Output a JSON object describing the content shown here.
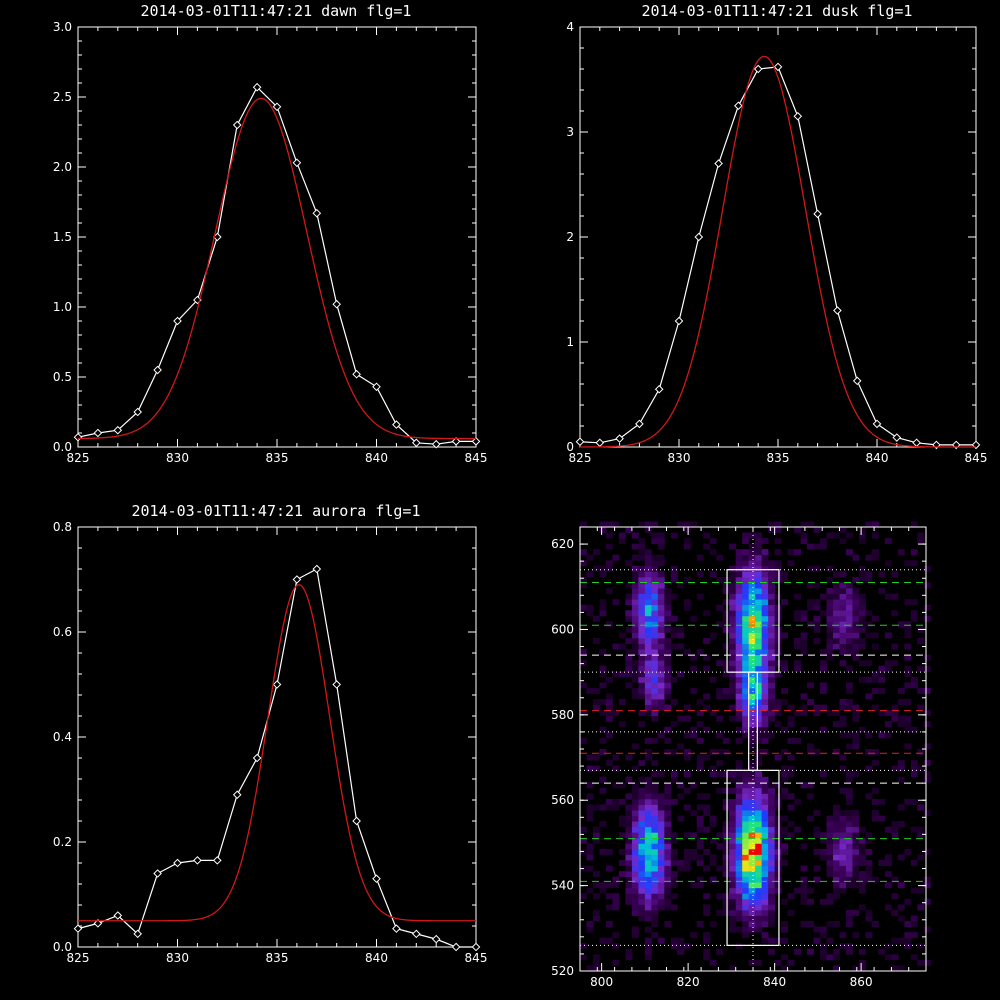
{
  "chart_data": [
    {
      "type": "line",
      "title": "2014-03-01T11:47:21 dawn flg=1",
      "xlim": [
        825,
        845
      ],
      "ylim": [
        0,
        3.0
      ],
      "x_ticks": [
        825,
        830,
        835,
        840,
        845
      ],
      "y_ticks": [
        "0.0",
        "0.5",
        "1.0",
        "1.5",
        "2.0",
        "2.5",
        "3.0"
      ],
      "series": [
        {
          "style": "data",
          "color": "#ffffff",
          "marker": "diamond",
          "x": [
            825,
            826,
            827,
            828,
            829,
            830,
            831,
            832,
            833,
            834,
            835,
            836,
            837,
            838,
            839,
            840,
            841,
            842,
            843,
            844,
            845
          ],
          "y": [
            0.07,
            0.1,
            0.12,
            0.25,
            0.55,
            0.9,
            1.05,
            1.5,
            2.3,
            2.57,
            2.43,
            2.03,
            1.67,
            1.02,
            0.52,
            0.43,
            0.16,
            0.03,
            0.02,
            0.04,
            0.04
          ]
        },
        {
          "style": "fit",
          "color": "#d01818",
          "gauss": {
            "amp": 2.43,
            "center": 834.2,
            "sigma": 2.3,
            "base": 0.06
          }
        }
      ]
    },
    {
      "type": "line",
      "title": "2014-03-01T11:47:21 dusk flg=1",
      "xlim": [
        825,
        845
      ],
      "ylim": [
        0,
        4
      ],
      "x_ticks": [
        825,
        830,
        835,
        840,
        845
      ],
      "y_ticks": [
        "0",
        "1",
        "2",
        "3",
        "4"
      ],
      "series": [
        {
          "style": "data",
          "color": "#ffffff",
          "marker": "diamond",
          "x": [
            825,
            826,
            827,
            828,
            829,
            830,
            831,
            832,
            833,
            834,
            835,
            836,
            837,
            838,
            839,
            840,
            841,
            842,
            843,
            844,
            845
          ],
          "y": [
            0.05,
            0.04,
            0.08,
            0.22,
            0.55,
            1.2,
            2.0,
            2.7,
            3.25,
            3.6,
            3.62,
            3.15,
            2.22,
            1.3,
            0.63,
            0.22,
            0.09,
            0.04,
            0.02,
            0.02,
            0.02
          ]
        },
        {
          "style": "fit",
          "color": "#d01818",
          "gauss": {
            "amp": 3.72,
            "center": 834.3,
            "sigma": 2.1,
            "base": 0.0
          }
        }
      ]
    },
    {
      "type": "line",
      "title": "2014-03-01T11:47:21 aurora flg=1",
      "xlim": [
        825,
        845
      ],
      "ylim": [
        0,
        0.8
      ],
      "x_ticks": [
        825,
        830,
        835,
        840,
        845
      ],
      "y_ticks": [
        "0.0",
        "0.2",
        "0.4",
        "0.6",
        "0.8"
      ],
      "series": [
        {
          "style": "data",
          "color": "#ffffff",
          "marker": "diamond",
          "x": [
            825,
            826,
            827,
            828,
            829,
            830,
            831,
            832,
            833,
            834,
            835,
            836,
            837,
            838,
            839,
            840,
            841,
            842,
            843,
            844,
            845
          ],
          "y": [
            0.035,
            0.045,
            0.06,
            0.025,
            0.14,
            0.16,
            0.165,
            0.165,
            0.29,
            0.36,
            0.5,
            0.7,
            0.72,
            0.5,
            0.24,
            0.13,
            0.035,
            0.025,
            0.015,
            0.0,
            0.0
          ]
        },
        {
          "style": "fit",
          "color": "#d01818",
          "gauss": {
            "amp": 0.64,
            "center": 836.1,
            "sigma": 1.55,
            "base": 0.05
          }
        }
      ]
    },
    {
      "type": "heatmap",
      "xlim": [
        795,
        875
      ],
      "ylim": [
        520,
        624
      ],
      "x_ticks": [
        800,
        820,
        840,
        860
      ],
      "y_ticks": [
        520,
        540,
        560,
        580,
        600,
        620
      ],
      "colormap": "rainbow",
      "blobs": [
        {
          "x": 811,
          "y": 604,
          "sx": 2.2,
          "sy": 6,
          "amp": 0.45
        },
        {
          "x": 812,
          "y": 588,
          "sx": 2.0,
          "sy": 4,
          "amp": 0.3
        },
        {
          "x": 811,
          "y": 548,
          "sx": 2.5,
          "sy": 7,
          "amp": 0.6
        },
        {
          "x": 835,
          "y": 601,
          "sx": 2.5,
          "sy": 8,
          "amp": 0.75
        },
        {
          "x": 835,
          "y": 585,
          "sx": 2.2,
          "sy": 5,
          "amp": 0.45
        },
        {
          "x": 835,
          "y": 548,
          "sx": 2.6,
          "sy": 8,
          "amp": 0.95
        },
        {
          "x": 856,
          "y": 603,
          "sx": 2.5,
          "sy": 5,
          "amp": 0.18
        },
        {
          "x": 856,
          "y": 548,
          "sx": 2.5,
          "sy": 5,
          "amp": 0.2
        }
      ],
      "boxes": [
        {
          "x0": 829,
          "x1": 841,
          "y0": 590,
          "y1": 614
        },
        {
          "x0": 834,
          "x1": 836,
          "y0": 567,
          "y1": 590
        },
        {
          "x0": 829,
          "x1": 841,
          "y0": 526,
          "y1": 567
        }
      ],
      "hlines": [
        {
          "y": 611,
          "color": "#22cc22",
          "style": "dashed"
        },
        {
          "y": 601,
          "color": "#22cc22",
          "style": "dashed"
        },
        {
          "y": 551,
          "color": "#22cc22",
          "style": "dashed"
        },
        {
          "y": 541,
          "color": "#22cc22",
          "style": "dashed"
        },
        {
          "y": 594,
          "color": "#ffffff",
          "style": "dashed"
        },
        {
          "y": 564,
          "color": "#ffffff",
          "style": "dashed"
        },
        {
          "y": 581,
          "color": "#dd2222",
          "style": "dashed"
        },
        {
          "y": 571,
          "color": "#dd2222",
          "style": "dashed"
        },
        {
          "y": 614,
          "color": "#ffffff",
          "style": "dotted"
        },
        {
          "y": 590,
          "color": "#ffffff",
          "style": "dotted"
        },
        {
          "y": 576,
          "color": "#ffffff",
          "style": "dotted"
        },
        {
          "y": 567,
          "color": "#ffffff",
          "style": "dotted"
        },
        {
          "y": 526,
          "color": "#ffffff",
          "style": "dotted"
        }
      ],
      "vlines": [
        {
          "x": 835,
          "color": "#ffffff",
          "style": "dotted"
        }
      ]
    }
  ]
}
